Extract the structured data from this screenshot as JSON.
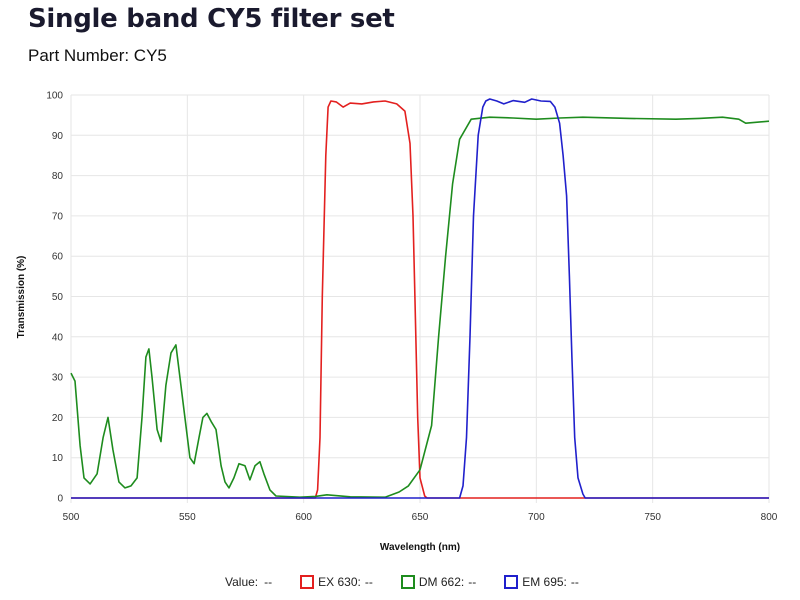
{
  "header": {
    "title": "Single band CY5 filter set",
    "part_number": "Part Number: CY5"
  },
  "legend": {
    "value_label": "Value:",
    "value": "--",
    "items": [
      {
        "name": "EX 630:",
        "value": "--",
        "color": "#e3201f"
      },
      {
        "name": "DM 662:",
        "value": "--",
        "color": "#1e8c1e"
      },
      {
        "name": "EM 695:",
        "value": "--",
        "color": "#2020cc"
      }
    ]
  },
  "chart_data": {
    "type": "line",
    "xlabel": "Wavelength (nm)",
    "ylabel": "Transmission (%)",
    "xlim": [
      500,
      800
    ],
    "ylim": [
      0,
      100
    ],
    "xticks": [
      500,
      550,
      600,
      650,
      700,
      750,
      800
    ],
    "yticks": [
      0,
      10,
      20,
      30,
      40,
      50,
      60,
      70,
      80,
      90,
      100
    ],
    "grid": true,
    "legend_placement": "bottom",
    "series": [
      {
        "name": "EX 630",
        "color": "#e3201f",
        "points": [
          [
            500,
            0
          ],
          [
            605,
            0
          ],
          [
            606,
            2
          ],
          [
            607,
            15
          ],
          [
            608,
            50
          ],
          [
            609.5,
            85
          ],
          [
            610.5,
            97
          ],
          [
            611.7,
            98.5
          ],
          [
            614,
            98.3
          ],
          [
            617,
            97
          ],
          [
            620,
            98
          ],
          [
            625,
            97.8
          ],
          [
            630,
            98.3
          ],
          [
            635,
            98.5
          ],
          [
            640,
            97.8
          ],
          [
            643.5,
            96
          ],
          [
            645.7,
            88
          ],
          [
            647,
            70
          ],
          [
            647.8,
            50
          ],
          [
            649,
            20
          ],
          [
            650,
            5
          ],
          [
            652,
            0.5
          ],
          [
            653,
            0
          ],
          [
            800,
            0
          ]
        ]
      },
      {
        "name": "DM 662",
        "color": "#1e8c1e",
        "points": [
          [
            500,
            31
          ],
          [
            501.7,
            29
          ],
          [
            503.9,
            13
          ],
          [
            505.6,
            5
          ],
          [
            508.2,
            3.5
          ],
          [
            511.2,
            6
          ],
          [
            513.8,
            15
          ],
          [
            515.9,
            20
          ],
          [
            518,
            12
          ],
          [
            520.6,
            4
          ],
          [
            523.2,
            2.5
          ],
          [
            525.8,
            3
          ],
          [
            528.4,
            5
          ],
          [
            530.5,
            20
          ],
          [
            532.2,
            35
          ],
          [
            533.5,
            37
          ],
          [
            534.8,
            30
          ],
          [
            537,
            17
          ],
          [
            538.7,
            14
          ],
          [
            540.8,
            28
          ],
          [
            543,
            36
          ],
          [
            545.1,
            38
          ],
          [
            546.8,
            30
          ],
          [
            549.4,
            18
          ],
          [
            551.1,
            10
          ],
          [
            552.9,
            8.5
          ],
          [
            555,
            15
          ],
          [
            556.7,
            20
          ],
          [
            558.4,
            21
          ],
          [
            560.2,
            19
          ],
          [
            562.3,
            17
          ],
          [
            564.5,
            8
          ],
          [
            566.2,
            4
          ],
          [
            567.9,
            2.5
          ],
          [
            570,
            5
          ],
          [
            572.2,
            8.5
          ],
          [
            574.8,
            8
          ],
          [
            576.9,
            4.5
          ],
          [
            579.1,
            8
          ],
          [
            581.2,
            9
          ],
          [
            582.9,
            6
          ],
          [
            585.5,
            2
          ],
          [
            588.1,
            0.5
          ],
          [
            598.4,
            0.2
          ],
          [
            605,
            0.4
          ],
          [
            610,
            0.8
          ],
          [
            620,
            0.3
          ],
          [
            635,
            0.2
          ],
          [
            641,
            1.5
          ],
          [
            645,
            3
          ],
          [
            650,
            7
          ],
          [
            655,
            18
          ],
          [
            658,
            40
          ],
          [
            661,
            60
          ],
          [
            664,
            78
          ],
          [
            667,
            89
          ],
          [
            672,
            94
          ],
          [
            680,
            94.5
          ],
          [
            690,
            94.3
          ],
          [
            700,
            94
          ],
          [
            710,
            94.3
          ],
          [
            720,
            94.5
          ],
          [
            740,
            94.2
          ],
          [
            760,
            94
          ],
          [
            770,
            94.2
          ],
          [
            780,
            94.5
          ],
          [
            787,
            94
          ],
          [
            790,
            93
          ],
          [
            800,
            93.5
          ]
        ]
      },
      {
        "name": "EM 695",
        "color": "#2020cc",
        "points": [
          [
            500,
            0
          ],
          [
            667,
            0
          ],
          [
            668.5,
            3
          ],
          [
            670,
            15
          ],
          [
            671.5,
            40
          ],
          [
            673,
            70
          ],
          [
            675,
            90
          ],
          [
            677,
            97
          ],
          [
            678.3,
            98.5
          ],
          [
            680,
            99
          ],
          [
            683,
            98.5
          ],
          [
            686,
            97.8
          ],
          [
            690,
            98.6
          ],
          [
            695,
            98.2
          ],
          [
            698,
            99
          ],
          [
            702,
            98.5
          ],
          [
            706,
            98.4
          ],
          [
            708,
            97
          ],
          [
            710,
            93
          ],
          [
            711.5,
            85
          ],
          [
            713,
            75
          ],
          [
            714.2,
            55
          ],
          [
            715.3,
            35
          ],
          [
            716.5,
            15
          ],
          [
            717.9,
            5
          ],
          [
            720,
            1
          ],
          [
            721,
            0
          ],
          [
            800,
            0
          ]
        ]
      }
    ]
  }
}
